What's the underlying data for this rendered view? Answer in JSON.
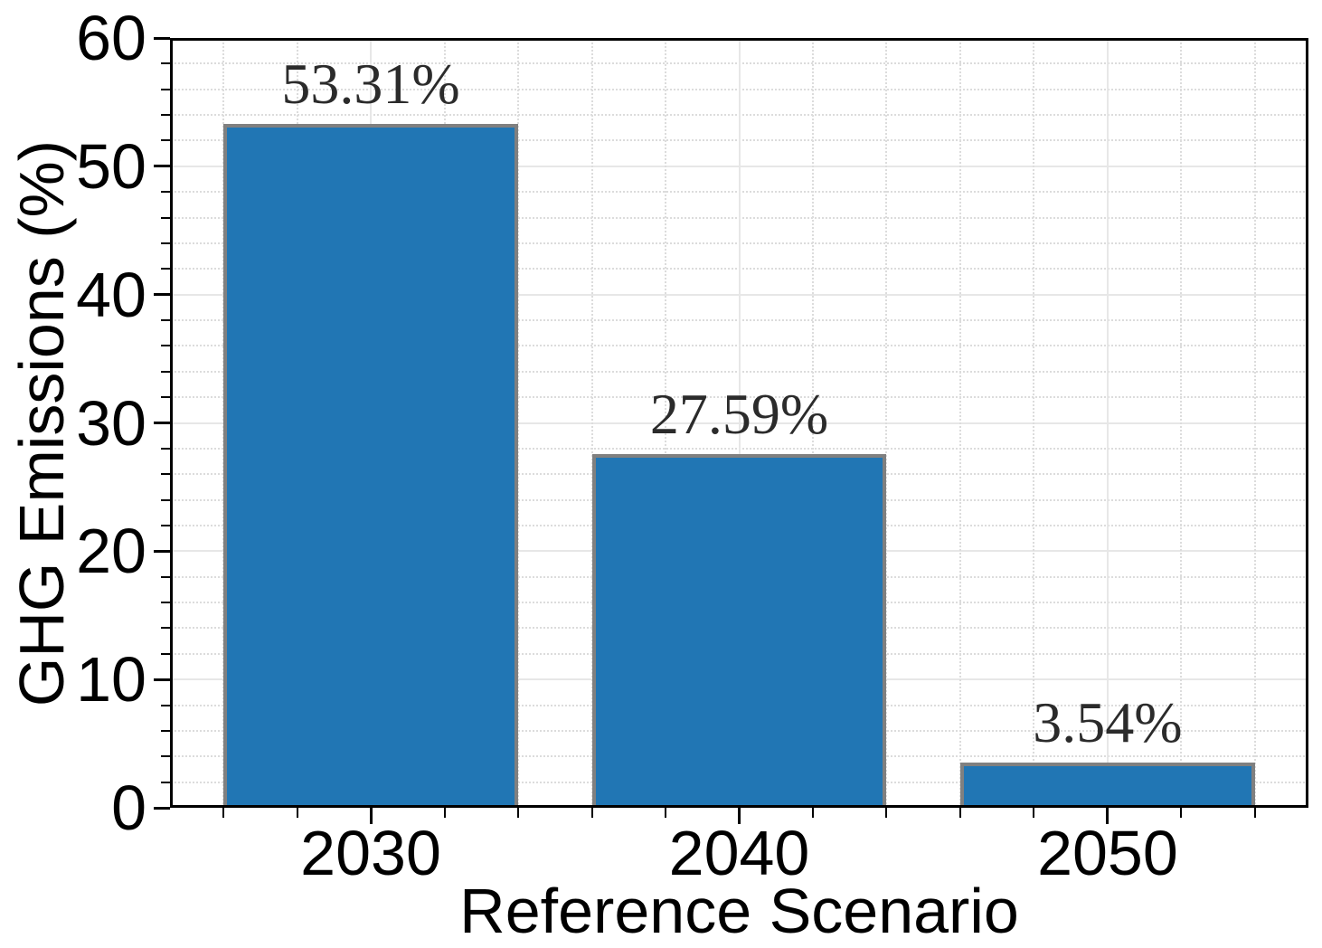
{
  "chart_data": {
    "type": "bar",
    "categories": [
      "2030",
      "2040",
      "2050"
    ],
    "values": [
      53.31,
      27.59,
      3.54
    ],
    "bar_labels": [
      "53.31%",
      "27.59%",
      "3.54%"
    ],
    "xlabel": "Reference Scenario",
    "ylabel": "GHG Emissions (%)",
    "ylim": [
      0,
      60
    ],
    "ytick_values": [
      0,
      10,
      20,
      30,
      40,
      50,
      60
    ],
    "ytick_labels": [
      "0",
      "10",
      "20",
      "30",
      "40",
      "50",
      "60"
    ],
    "y_minor_step": 2,
    "x_minor_step": 0.2,
    "bar_width_fraction": 0.8,
    "grid": {
      "major_style": "solid",
      "minor_style": "dotted",
      "visible": true
    },
    "colors": {
      "bar_fill": "#2176b4",
      "bar_edge": "#808080",
      "grid_major": "#e7e7e7",
      "grid_minor": "#dcdcdc",
      "spine": "#000000",
      "tick_label": "#000000",
      "bar_label": "#2b2b2b"
    }
  }
}
